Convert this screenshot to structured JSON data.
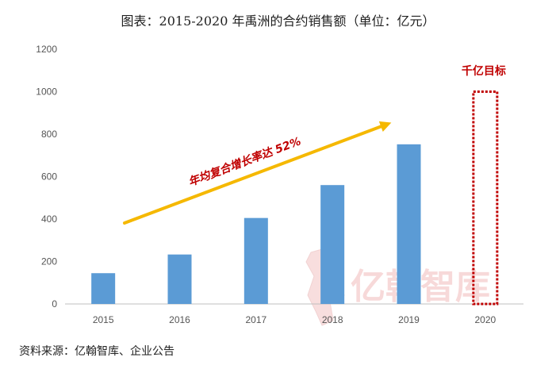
{
  "title": "图表：2015-2020 年禹洲的合约销售额（单位：亿元）",
  "source": "资料来源：亿翰智库、企业公告",
  "watermark": "亿翰智库",
  "chart_data": {
    "type": "bar",
    "categories": [
      "2015",
      "2016",
      "2017",
      "2018",
      "2019",
      "2020"
    ],
    "values": [
      145,
      233,
      405,
      560,
      752,
      null
    ],
    "ylim": [
      0,
      1200
    ],
    "yticks": [
      0,
      200,
      400,
      600,
      800,
      1000,
      1200
    ],
    "grid": false,
    "bar_color": "#5b9bd5",
    "annotations": {
      "growth_text": "年均复合增长率达 52%",
      "growth_color": "#c00000",
      "arrow_color": "#f5b800",
      "target_text": "千亿目标",
      "target_value": 1000,
      "target_category": "2020",
      "target_color": "#c00000"
    }
  }
}
